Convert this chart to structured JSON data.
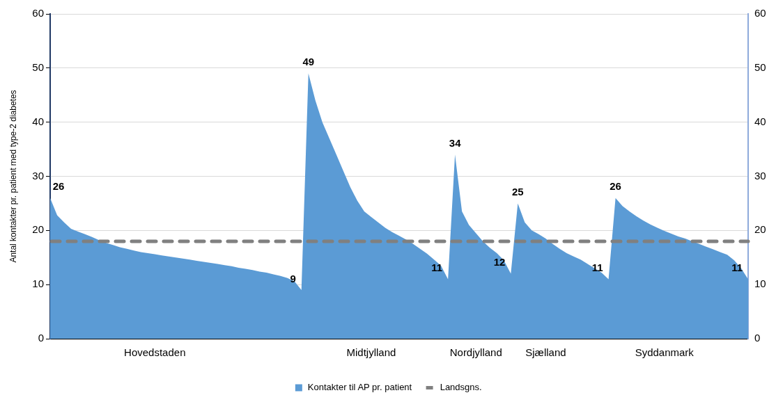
{
  "chart_data": {
    "type": "area",
    "ylabel": "Antal kontakter pr. patient med type-2 diabetes",
    "categories": [
      null,
      null,
      null,
      null,
      null,
      null,
      null,
      null,
      null,
      null,
      null,
      null,
      null,
      null,
      null,
      "Hovedstaden",
      null,
      null,
      null,
      null,
      null,
      null,
      null,
      null,
      null,
      null,
      null,
      null,
      null,
      null,
      null,
      null,
      null,
      null,
      null,
      null,
      null,
      null,
      null,
      null,
      null,
      null,
      null,
      null,
      null,
      null,
      "Midtjylland",
      null,
      null,
      null,
      null,
      null,
      null,
      null,
      null,
      null,
      null,
      null,
      null,
      null,
      null,
      "Nordjylland",
      null,
      null,
      null,
      null,
      null,
      null,
      null,
      null,
      null,
      "Sjælland",
      null,
      null,
      null,
      null,
      null,
      null,
      null,
      null,
      null,
      null,
      null,
      null,
      null,
      null,
      null,
      null,
      "Syddanmark",
      null,
      null,
      null,
      null,
      null,
      null,
      null,
      null,
      null,
      null,
      null,
      null
    ],
    "series": [
      {
        "name": "Kontakter til AP pr. patient",
        "color": "#5b9bd5",
        "values": [
          26,
          22.8,
          21.5,
          20.3,
          19.8,
          19.3,
          18.8,
          18.2,
          17.7,
          17.3,
          16.9,
          16.6,
          16.3,
          16,
          15.8,
          15.6,
          15.4,
          15.2,
          15,
          14.8,
          14.6,
          14.4,
          14.2,
          14,
          13.8,
          13.6,
          13.4,
          13.1,
          12.9,
          12.7,
          12.4,
          12.2,
          11.9,
          11.6,
          11.2,
          10.6,
          9,
          49,
          44,
          40,
          37,
          34,
          31,
          28,
          25.5,
          23.5,
          22.5,
          21.5,
          20.5,
          19.7,
          19,
          18.3,
          17.5,
          16.6,
          15.7,
          14.6,
          13.5,
          11,
          34,
          23.5,
          21,
          19.5,
          18,
          16.8,
          15.8,
          14.5,
          12,
          25,
          21.5,
          20,
          19.3,
          18.5,
          17.5,
          16.6,
          15.8,
          15.2,
          14.6,
          13.8,
          13,
          12.2,
          11,
          26,
          24.5,
          23.5,
          22.6,
          21.8,
          21.1,
          20.5,
          19.9,
          19.4,
          18.9,
          18.5,
          18,
          17.5,
          17,
          16.5,
          16,
          15.5,
          14.5,
          13,
          11
        ],
        "value_labels": [
          "26",
          null,
          null,
          null,
          null,
          null,
          null,
          null,
          null,
          null,
          null,
          null,
          null,
          null,
          null,
          null,
          null,
          null,
          null,
          null,
          null,
          null,
          null,
          null,
          null,
          null,
          null,
          null,
          null,
          null,
          null,
          null,
          null,
          null,
          null,
          null,
          "9",
          "49",
          null,
          null,
          null,
          null,
          null,
          null,
          null,
          null,
          null,
          null,
          null,
          null,
          null,
          null,
          null,
          null,
          null,
          null,
          null,
          "11",
          "34",
          null,
          null,
          null,
          null,
          null,
          null,
          null,
          "12",
          "25",
          null,
          null,
          null,
          null,
          null,
          null,
          null,
          null,
          null,
          null,
          null,
          null,
          "11",
          "26",
          null,
          null,
          null,
          null,
          null,
          null,
          null,
          null,
          null,
          null,
          null,
          null,
          null,
          null,
          null,
          null,
          null,
          null,
          "11"
        ]
      }
    ],
    "ylim": [
      0,
      60
    ],
    "yticks": [
      0,
      10,
      20,
      30,
      40,
      50,
      60
    ],
    "y2lim": [
      0,
      60
    ],
    "y2ticks": [
      0,
      10,
      20,
      30,
      40,
      50,
      60
    ],
    "grid": "y",
    "legend": "bottom",
    "ref_lines": [
      {
        "axis": "y",
        "value": 18,
        "label": "Landsgns.",
        "color": "#808080",
        "line_style": "dashed"
      }
    ]
  }
}
